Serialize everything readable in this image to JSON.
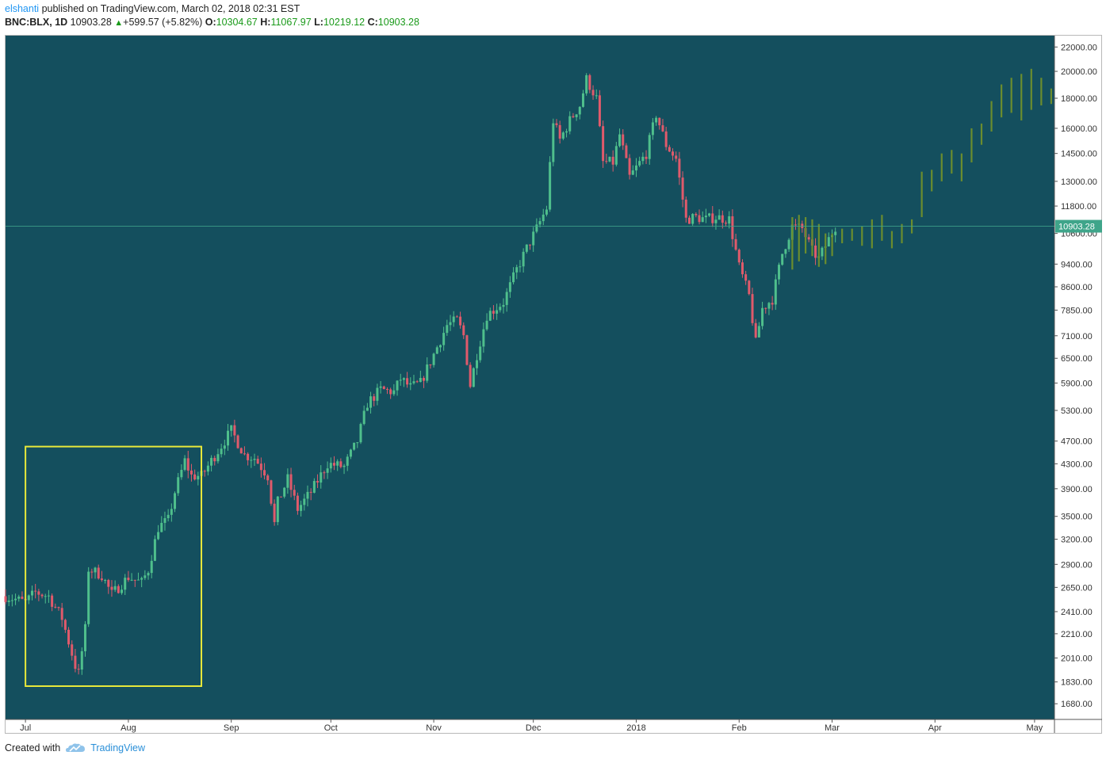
{
  "header": {
    "author": "elshanti",
    "published": "published on TradingView.com, March 02, 2018 02:31 EST",
    "symbol": "BNC:BLX, 1D",
    "last": "10903.28",
    "change": "+599.57 (+5.82%)",
    "o_label": "O:",
    "o_value": "10304.67",
    "h_label": "H:",
    "h_value": "11067.97",
    "l_label": "L:",
    "l_value": "10219.12",
    "c_label": "C:",
    "c_value": "10903.28"
  },
  "footer": {
    "created_with": "Created with",
    "brand": "TradingView"
  },
  "colors": {
    "background": "#144f5e",
    "up": "#4fbf8c",
    "down": "#e05a6b",
    "projection": "#6b8d2e",
    "highlight_box": "#e8e83a",
    "price_line": "#3fa58a",
    "price_label_bg": "#3fa58a"
  },
  "chart_data": {
    "type": "candlestick",
    "ylog": true,
    "ylim": [
      1580,
      23000
    ],
    "y_ticks": [
      1680,
      1830,
      2010,
      2210,
      2410,
      2650,
      2900,
      3200,
      3500,
      3900,
      4300,
      4700,
      5300,
      5900,
      6500,
      7100,
      7850,
      8600,
      9400,
      10600,
      11800,
      13000,
      14500,
      16000,
      18000,
      20000,
      22000
    ],
    "x_labels": [
      "Jul",
      "Aug",
      "Sep",
      "Oct",
      "Nov",
      "Dec",
      "2018",
      "Feb",
      "Mar",
      "Apr",
      "May"
    ],
    "x_label_dates": [
      "2017-07-01",
      "2017-08-01",
      "2017-09-01",
      "2017-10-01",
      "2017-11-01",
      "2017-12-01",
      "2018-01-01",
      "2018-02-01",
      "2018-03-01",
      "2018-04-01",
      "2018-05-01"
    ],
    "x_start": "2017-06-25",
    "x_end": "2018-05-07",
    "current_price": 10903.28,
    "current_price_label": "10903.28",
    "highlight_box": {
      "start": "2017-07-01",
      "end": "2017-08-23",
      "low": 1800,
      "high": 4600
    },
    "price_path": [
      [
        "2017-06-25",
        2560
      ],
      [
        "2017-07-01",
        2500
      ],
      [
        "2017-07-04",
        2600
      ],
      [
        "2017-07-08",
        2560
      ],
      [
        "2017-07-12",
        2350
      ],
      [
        "2017-07-16",
        1950
      ],
      [
        "2017-07-17",
        1890
      ],
      [
        "2017-07-19",
        2250
      ],
      [
        "2017-07-20",
        2850
      ],
      [
        "2017-07-24",
        2780
      ],
      [
        "2017-07-27",
        2580
      ],
      [
        "2017-08-01",
        2760
      ],
      [
        "2017-08-05",
        2700
      ],
      [
        "2017-08-07",
        2840
      ],
      [
        "2017-08-10",
        3350
      ],
      [
        "2017-08-13",
        3450
      ],
      [
        "2017-08-15",
        3850
      ],
      [
        "2017-08-18",
        4350
      ],
      [
        "2017-08-20",
        4100
      ],
      [
        "2017-08-23",
        4100
      ],
      [
        "2017-08-26",
        4350
      ],
      [
        "2017-09-01",
        4900
      ],
      [
        "2017-09-05",
        4450
      ],
      [
        "2017-09-08",
        4400
      ],
      [
        "2017-09-12",
        4100
      ],
      [
        "2017-09-14",
        3400
      ],
      [
        "2017-09-15",
        3700
      ],
      [
        "2017-09-18",
        4050
      ],
      [
        "2017-09-21",
        3600
      ],
      [
        "2017-09-25",
        3850
      ],
      [
        "2017-09-30",
        4300
      ],
      [
        "2017-10-05",
        4250
      ],
      [
        "2017-10-09",
        4700
      ],
      [
        "2017-10-12",
        5450
      ],
      [
        "2017-10-16",
        5750
      ],
      [
        "2017-10-20",
        5700
      ],
      [
        "2017-10-22",
        6000
      ],
      [
        "2017-10-25",
        5800
      ],
      [
        "2017-10-28",
        5900
      ],
      [
        "2017-11-01",
        6600
      ],
      [
        "2017-11-05",
        7400
      ],
      [
        "2017-11-08",
        7550
      ],
      [
        "2017-11-10",
        7100
      ],
      [
        "2017-11-12",
        5850
      ],
      [
        "2017-11-14",
        6600
      ],
      [
        "2017-11-17",
        7700
      ],
      [
        "2017-11-22",
        8100
      ],
      [
        "2017-11-26",
        9200
      ],
      [
        "2017-11-29",
        10000
      ],
      [
        "2017-12-02",
        10800
      ],
      [
        "2017-12-05",
        11700
      ],
      [
        "2017-12-07",
        16500
      ],
      [
        "2017-12-09",
        15300
      ],
      [
        "2017-12-12",
        16500
      ],
      [
        "2017-12-15",
        17500
      ],
      [
        "2017-12-17",
        19400
      ],
      [
        "2017-12-20",
        18000
      ],
      [
        "2017-12-22",
        14000
      ],
      [
        "2017-12-25",
        14000
      ],
      [
        "2017-12-27",
        15600
      ],
      [
        "2017-12-30",
        13200
      ],
      [
        "2018-01-04",
        14500
      ],
      [
        "2018-01-07",
        16900
      ],
      [
        "2018-01-10",
        15000
      ],
      [
        "2018-01-13",
        14200
      ],
      [
        "2018-01-16",
        11200
      ],
      [
        "2018-01-19",
        11300
      ],
      [
        "2018-01-22",
        11200
      ],
      [
        "2018-01-25",
        11300
      ],
      [
        "2018-01-29",
        11200
      ],
      [
        "2018-02-01",
        9300
      ],
      [
        "2018-02-04",
        8300
      ],
      [
        "2018-02-06",
        6900
      ],
      [
        "2018-02-08",
        7900
      ],
      [
        "2018-02-11",
        8200
      ],
      [
        "2018-02-14",
        9800
      ],
      [
        "2018-02-17",
        10900
      ],
      [
        "2018-02-20",
        10800
      ],
      [
        "2018-02-23",
        9900
      ],
      [
        "2018-02-25",
        9600
      ],
      [
        "2018-03-02",
        10900
      ]
    ],
    "projection": [
      [
        "2018-02-17",
        9200,
        11300
      ],
      [
        "2018-02-19",
        9500,
        11400
      ],
      [
        "2018-02-21",
        9800,
        11300
      ],
      [
        "2018-02-23",
        9700,
        11200
      ],
      [
        "2018-02-25",
        9300,
        11000
      ],
      [
        "2018-02-27",
        9400,
        10600
      ],
      [
        "2018-03-01",
        9700,
        10600
      ],
      [
        "2018-03-04",
        10200,
        10800
      ],
      [
        "2018-03-07",
        10300,
        10800
      ],
      [
        "2018-03-10",
        10100,
        10900
      ],
      [
        "2018-03-13",
        10000,
        11200
      ],
      [
        "2018-03-16",
        10300,
        11400
      ],
      [
        "2018-03-19",
        10000,
        10700
      ],
      [
        "2018-03-22",
        10200,
        11000
      ],
      [
        "2018-03-25",
        10600,
        11200
      ],
      [
        "2018-03-28",
        11300,
        13500
      ],
      [
        "2018-03-31",
        12500,
        13600
      ],
      [
        "2018-04-03",
        13000,
        14500
      ],
      [
        "2018-04-06",
        13400,
        14700
      ],
      [
        "2018-04-09",
        13000,
        14500
      ],
      [
        "2018-04-12",
        14000,
        16000
      ],
      [
        "2018-04-15",
        15000,
        16300
      ],
      [
        "2018-04-18",
        15800,
        17800
      ],
      [
        "2018-04-21",
        16700,
        19000
      ],
      [
        "2018-04-24",
        17000,
        19500
      ],
      [
        "2018-04-27",
        16500,
        19800
      ],
      [
        "2018-04-30",
        17200,
        20200
      ],
      [
        "2018-05-03",
        17500,
        19500
      ],
      [
        "2018-05-06",
        17600,
        18700
      ]
    ]
  }
}
